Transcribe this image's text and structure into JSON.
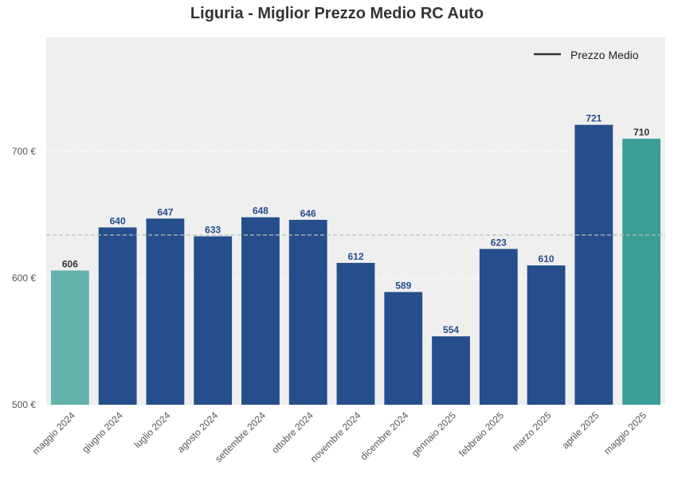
{
  "chart_data": {
    "type": "bar",
    "title": "Liguria - Miglior Prezzo Medio RC Auto",
    "xlabel": "",
    "ylabel": "",
    "categories": [
      "maggio 2024",
      "giugno 2024",
      "luglio 2024",
      "agosto 2024",
      "settembre 2024",
      "ottobre 2024",
      "novembre 2024",
      "dicembre 2024",
      "gennaio 2025",
      "febbraio 2025",
      "marzo 2025",
      "aprile 2025",
      "maggio 2025"
    ],
    "values": [
      606,
      640,
      647,
      633,
      648,
      646,
      612,
      589,
      554,
      623,
      610,
      721,
      710
    ],
    "value_labels": [
      "606",
      "640",
      "647",
      "633",
      "648",
      "646",
      "612",
      "589",
      "554",
      "623",
      "610",
      "721",
      "710"
    ],
    "bar_colors": [
      "#63b3ad",
      "#264e8c",
      "#264e8c",
      "#264e8c",
      "#264e8c",
      "#264e8c",
      "#264e8c",
      "#264e8c",
      "#264e8c",
      "#264e8c",
      "#264e8c",
      "#264e8c",
      "#3a9e97"
    ],
    "label_colors": [
      "#333333",
      "#264e8c",
      "#264e8c",
      "#264e8c",
      "#264e8c",
      "#264e8c",
      "#264e8c",
      "#264e8c",
      "#264e8c",
      "#264e8c",
      "#264e8c",
      "#264e8c",
      "#333333"
    ],
    "ylim": [
      500,
      790
    ],
    "yticks": [
      500,
      600,
      700
    ],
    "ytick_labels": [
      "500 €",
      "600 €",
      "700 €"
    ],
    "average_line": {
      "label": "Prezzo Medio",
      "value": 634
    },
    "grid": true,
    "legend_position": "top-right",
    "background_color": "#efefef"
  }
}
